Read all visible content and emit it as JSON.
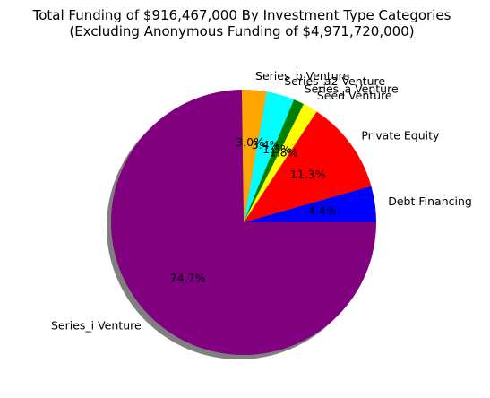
{
  "chart_data": {
    "type": "pie",
    "title": "Total Funding of $916,467,000 By Investment Type Categories",
    "subtitle": "(Excluding Anonymous Funding of $4,971,720,000)",
    "slices": [
      {
        "label": "Debt Financing",
        "percent": 4.4,
        "pct_label": "4.4%",
        "color": "#0000ff"
      },
      {
        "label": "Private Equity",
        "percent": 11.3,
        "pct_label": "11.3%",
        "color": "#ff0000"
      },
      {
        "label": "Seed Venture",
        "percent": 1.8,
        "pct_label": "1.8%",
        "color": "#ffff00"
      },
      {
        "label": "Series_a Venture",
        "percent": 1.3,
        "pct_label": "1.3%",
        "color": "#008000"
      },
      {
        "label": "Series_a2 Venture",
        "percent": 3.4,
        "pct_label": "3.4%",
        "color": "#00ffff"
      },
      {
        "label": "Series_b Venture",
        "percent": 3.0,
        "pct_label": "3.0%",
        "color": "#ffa500"
      },
      {
        "label": "Series_i Venture",
        "percent": 74.7,
        "pct_label": "74.7%",
        "color": "#800080"
      }
    ],
    "start_angle_deg": 0,
    "direction": "counterclockwise",
    "shadow": true,
    "legend": "none"
  }
}
